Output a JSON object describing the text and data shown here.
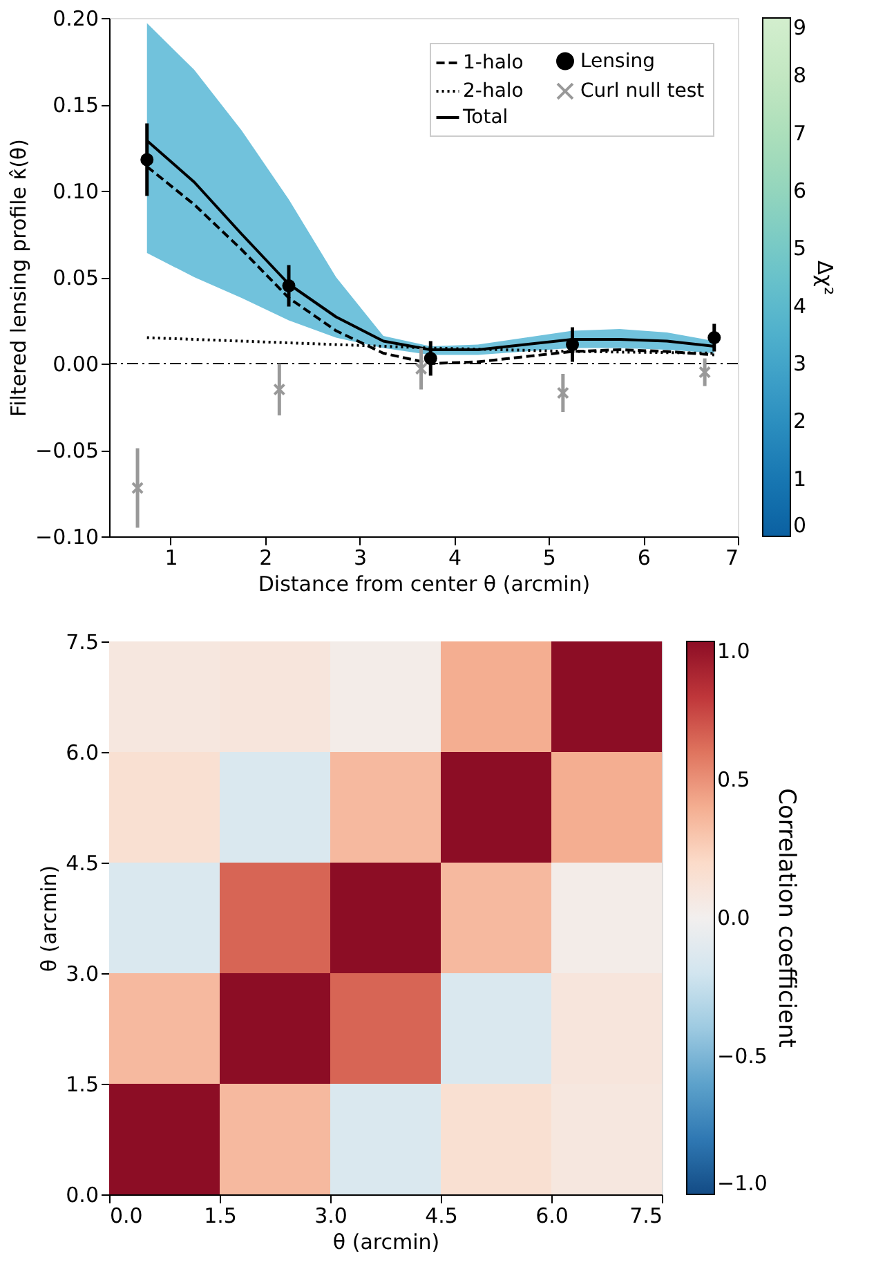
{
  "chart_data": [
    {
      "type": "line",
      "xlabel": "Distance from center θ (arcmin)",
      "ylabel": "Filtered lensing profile κ̂(θ)",
      "clabel": "Δχ²",
      "clim": [
        0,
        9
      ],
      "cticks": [
        0,
        1,
        2,
        3,
        4,
        5,
        6,
        7,
        8,
        9
      ],
      "xlim": [
        0.35,
        7
      ],
      "xticks": [
        1,
        2,
        3,
        4,
        5,
        6,
        7
      ],
      "ylim": [
        -0.1,
        0.2
      ],
      "yticks": [
        {
          "value": -0.1,
          "label": "−0.10"
        },
        {
          "value": -0.05,
          "label": "−0.05"
        },
        {
          "value": 0,
          "label": "0.00"
        },
        {
          "value": 0.05,
          "label": "0.05"
        },
        {
          "value": 0.1,
          "label": "0.10"
        },
        {
          "value": 0.15,
          "label": "0.15"
        },
        {
          "value": 0.2,
          "label": "0.20"
        }
      ],
      "legend": "top right",
      "grid": false,
      "ref_lines": [
        {
          "axis": "y",
          "value": 0,
          "color": "#000000",
          "line_style": "dashdot"
        }
      ],
      "series": [
        {
          "name": "1-halo",
          "type": "line",
          "line_style": "dashed",
          "color": "#000000",
          "x": [
            0.75,
            1.25,
            1.75,
            2.25,
            2.75,
            3.25,
            3.75,
            4.25,
            4.75,
            5.25,
            5.75,
            6.25,
            6.75
          ],
          "values": [
            0.114,
            0.092,
            0.066,
            0.038,
            0.019,
            0.006,
            0.0,
            0.001,
            0.004,
            0.007,
            0.008,
            0.007,
            0.005
          ]
        },
        {
          "name": "2-halo",
          "type": "line",
          "line_style": "dotted",
          "color": "#000000",
          "x": [
            0.75,
            3.25,
            3.75,
            5.25,
            6.75
          ],
          "values": [
            0.015,
            0.01,
            0.009,
            0.007,
            0.006
          ]
        },
        {
          "name": "Total",
          "type": "line",
          "line_style": "solid",
          "color": "#000000",
          "x": [
            0.75,
            1.25,
            1.75,
            2.25,
            2.75,
            3.25,
            3.75,
            4.25,
            4.75,
            5.25,
            5.75,
            6.25,
            6.75
          ],
          "values": [
            0.129,
            0.105,
            0.075,
            0.046,
            0.027,
            0.013,
            0.008,
            0.008,
            0.011,
            0.014,
            0.014,
            0.013,
            0.01
          ],
          "lower": [
            0.064,
            0.05,
            0.038,
            0.025,
            0.015,
            0.009,
            0.005,
            0.005,
            0.007,
            0.009,
            0.009,
            0.008,
            0.006
          ],
          "upper": [
            0.197,
            0.17,
            0.135,
            0.095,
            0.05,
            0.016,
            0.01,
            0.011,
            0.015,
            0.019,
            0.02,
            0.018,
            0.013
          ]
        },
        {
          "name": "Lensing",
          "type": "scatter",
          "marker": "circle",
          "color": "#000000",
          "x": [
            0.75,
            2.25,
            3.75,
            5.25,
            6.75
          ],
          "values": [
            0.118,
            0.045,
            0.003,
            0.011,
            0.015
          ],
          "errors": [
            0.021,
            0.012,
            0.01,
            0.01,
            0.008
          ]
        },
        {
          "name": "Curl null test",
          "type": "scatter",
          "marker": "cross",
          "color": "#999999",
          "x": [
            0.65,
            2.15,
            3.65,
            5.15,
            6.65
          ],
          "values": [
            -0.072,
            -0.015,
            -0.003,
            -0.017,
            -0.005
          ],
          "errors": [
            0.023,
            0.015,
            0.012,
            0.011,
            0.008
          ]
        }
      ]
    },
    {
      "type": "heatmap",
      "xlabel": "θ (arcmin)",
      "ylabel": "θ (arcmin)",
      "clabel": "Correlation coefficient",
      "clim": [
        -1,
        1
      ],
      "cticks": [
        {
          "value": -1,
          "label": "−1.0"
        },
        {
          "value": -0.5,
          "label": "−0.5"
        },
        {
          "value": 0,
          "label": "0.0"
        },
        {
          "value": 0.5,
          "label": "0.5"
        },
        {
          "value": 1,
          "label": "1.0"
        }
      ],
      "xlim": [
        0,
        7.5
      ],
      "ylim": [
        0,
        7.5
      ],
      "xticks": [
        {
          "value": 0,
          "label": "0.0"
        },
        1.5,
        {
          "value": 3,
          "label": "3.0"
        },
        4.5,
        {
          "value": 6,
          "label": "6.0"
        },
        7.5
      ],
      "yticks": [
        {
          "value": 0,
          "label": "0.0"
        },
        1.5,
        {
          "value": 3,
          "label": "3.0"
        },
        4.5,
        {
          "value": 6,
          "label": "6.0"
        },
        7.5
      ],
      "cells": [
        [
          0.08,
          0.1,
          0.03,
          0.4,
          1.0
        ],
        [
          0.15,
          -0.15,
          0.35,
          1.0,
          0.4
        ],
        [
          -0.15,
          0.65,
          1.0,
          0.35,
          0.03
        ],
        [
          0.35,
          1.0,
          0.65,
          -0.15,
          0.1
        ],
        [
          1.0,
          0.35,
          -0.15,
          0.15,
          0.08
        ]
      ]
    }
  ]
}
